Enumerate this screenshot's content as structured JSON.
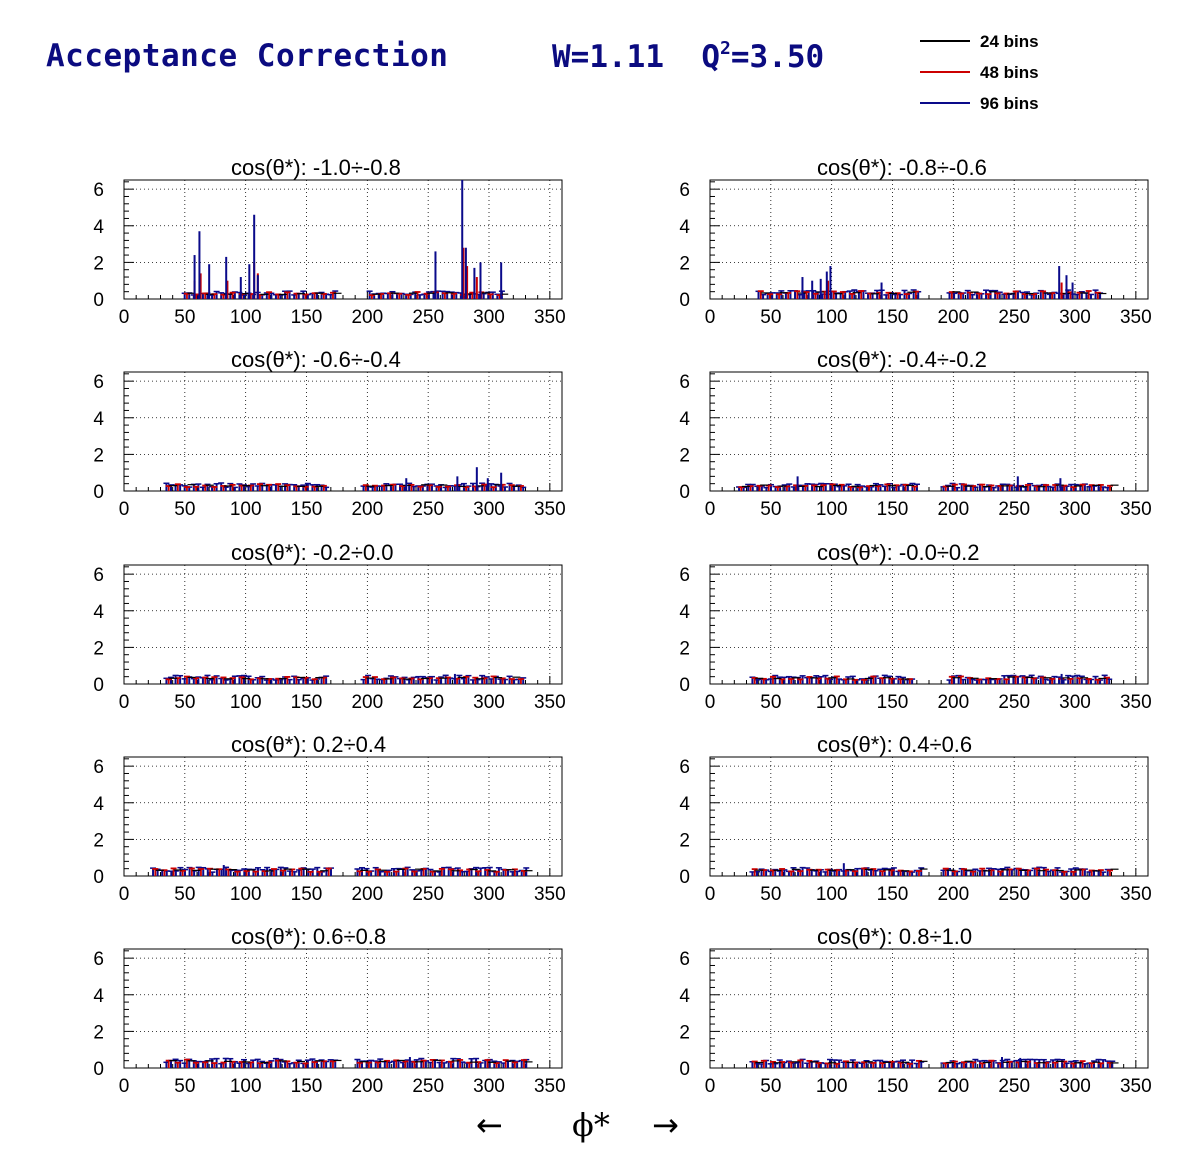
{
  "header": {
    "title": "Acceptance Correction",
    "w_label": "W=1.11",
    "q_prefix": "Q",
    "q_sup": "2",
    "q_value": "=3.50"
  },
  "legend": [
    {
      "label": "24 bins",
      "color": "#000000"
    },
    {
      "label": "48 bins",
      "color": "#cc0000"
    },
    {
      "label": "96 bins",
      "color": "#0a0a8a"
    }
  ],
  "axis": {
    "x_title": "ϕ*",
    "left_arrow": "←",
    "right_arrow": "→"
  },
  "chart_data": [
    {
      "type": "bar",
      "title": "cos(θ*): -1.0÷-0.8",
      "xlim": [
        0,
        360
      ],
      "ylim": [
        0,
        6.5
      ],
      "xticks": [
        0,
        50,
        100,
        150,
        200,
        250,
        300,
        350
      ],
      "yticks": [
        0,
        2,
        4,
        6
      ],
      "grid": true,
      "ranges": [
        [
          48,
          172
        ],
        [
          200,
          312
        ]
      ],
      "spikes": [
        [
          58,
          2.4
        ],
        [
          62,
          3.7
        ],
        [
          70,
          1.9
        ],
        [
          84,
          2.3
        ],
        [
          96,
          1.2
        ],
        [
          103,
          1.9
        ],
        [
          107,
          4.6
        ],
        [
          110,
          1.3
        ],
        [
          256,
          2.6
        ],
        [
          278,
          6.5
        ],
        [
          281,
          2.8
        ],
        [
          288,
          1.7
        ],
        [
          293,
          2.0
        ],
        [
          310,
          2.0
        ]
      ],
      "spikes_red": [
        [
          58,
          1.0
        ],
        [
          63,
          1.4
        ],
        [
          85,
          1.0
        ],
        [
          107,
          2.0
        ],
        [
          110,
          1.4
        ],
        [
          279,
          2.8
        ],
        [
          282,
          1.8
        ],
        [
          290,
          1.2
        ]
      ],
      "baseline": 0.35
    },
    {
      "type": "bar",
      "title": "cos(θ*): -0.8÷-0.6",
      "xlim": [
        0,
        360
      ],
      "ylim": [
        0,
        6.5
      ],
      "xticks": [
        0,
        50,
        100,
        150,
        200,
        250,
        300,
        350
      ],
      "yticks": [
        0,
        2,
        4,
        6
      ],
      "grid": true,
      "ranges": [
        [
          38,
          172
        ],
        [
          195,
          322
        ]
      ],
      "spikes": [
        [
          76,
          1.2
        ],
        [
          84,
          1.0
        ],
        [
          91,
          1.1
        ],
        [
          96,
          1.5
        ],
        [
          99,
          1.8
        ],
        [
          141,
          0.9
        ],
        [
          287,
          1.8
        ],
        [
          293,
          1.3
        ],
        [
          298,
          0.9
        ]
      ],
      "spikes_red": [
        [
          97,
          1.0
        ],
        [
          289,
          0.9
        ]
      ],
      "baseline": 0.4
    },
    {
      "type": "bar",
      "title": "cos(θ*): -0.6÷-0.4",
      "xlim": [
        0,
        360
      ],
      "ylim": [
        0,
        6.5
      ],
      "xticks": [
        0,
        50,
        100,
        150,
        200,
        250,
        300,
        350
      ],
      "yticks": [
        0,
        2,
        4,
        6
      ],
      "grid": true,
      "ranges": [
        [
          33,
          165
        ],
        [
          195,
          330
        ]
      ],
      "spikes": [
        [
          232,
          0.7
        ],
        [
          274,
          0.8
        ],
        [
          290,
          1.3
        ],
        [
          299,
          0.7
        ],
        [
          310,
          1.0
        ]
      ],
      "spikes_red": [],
      "baseline": 0.35
    },
    {
      "type": "bar",
      "title": "cos(θ*): -0.4÷-0.2",
      "xlim": [
        0,
        360
      ],
      "ylim": [
        0,
        6.5
      ],
      "xticks": [
        0,
        50,
        100,
        150,
        200,
        250,
        300,
        350
      ],
      "yticks": [
        0,
        2,
        4,
        6
      ],
      "grid": true,
      "ranges": [
        [
          22,
          172
        ],
        [
          190,
          328
        ]
      ],
      "spikes": [
        [
          72,
          0.8
        ],
        [
          253,
          0.8
        ],
        [
          288,
          0.7
        ]
      ],
      "spikes_red": [],
      "baseline": 0.33
    },
    {
      "type": "bar",
      "title": "cos(θ*): -0.2÷0.0",
      "xlim": [
        0,
        360
      ],
      "ylim": [
        0,
        6.5
      ],
      "xticks": [
        0,
        50,
        100,
        150,
        200,
        250,
        300,
        350
      ],
      "yticks": [
        0,
        2,
        4,
        6
      ],
      "grid": true,
      "ranges": [
        [
          33,
          165
        ],
        [
          195,
          328
        ]
      ],
      "spikes": [
        [
          272,
          0.55
        ]
      ],
      "spikes_red": [],
      "baseline": 0.38
    },
    {
      "type": "bar",
      "title": "cos(θ*): -0.0÷0.2",
      "xlim": [
        0,
        360
      ],
      "ylim": [
        0,
        6.5
      ],
      "xticks": [
        0,
        50,
        100,
        150,
        200,
        250,
        300,
        350
      ],
      "yticks": [
        0,
        2,
        4,
        6
      ],
      "grid": true,
      "ranges": [
        [
          33,
          165
        ],
        [
          195,
          328
        ]
      ],
      "spikes": [
        [
          289,
          0.55
        ]
      ],
      "spikes_red": [],
      "baseline": 0.38
    },
    {
      "type": "bar",
      "title": "cos(θ*): 0.2÷0.4",
      "xlim": [
        0,
        360
      ],
      "ylim": [
        0,
        6.5
      ],
      "xticks": [
        0,
        50,
        100,
        150,
        200,
        250,
        300,
        350
      ],
      "yticks": [
        0,
        2,
        4,
        6
      ],
      "grid": true,
      "ranges": [
        [
          22,
          172
        ],
        [
          190,
          330
        ]
      ],
      "spikes": [
        [
          82,
          0.6
        ]
      ],
      "spikes_red": [],
      "baseline": 0.38
    },
    {
      "type": "bar",
      "title": "cos(θ*): 0.4÷0.6",
      "xlim": [
        0,
        360
      ],
      "ylim": [
        0,
        6.5
      ],
      "xticks": [
        0,
        50,
        100,
        150,
        200,
        250,
        300,
        350
      ],
      "yticks": [
        0,
        2,
        4,
        6
      ],
      "grid": true,
      "ranges": [
        [
          33,
          172
        ],
        [
          190,
          328
        ]
      ],
      "spikes": [
        [
          110,
          0.7
        ]
      ],
      "spikes_red": [],
      "baseline": 0.38
    },
    {
      "type": "bar",
      "title": "cos(θ*): 0.6÷0.8",
      "xlim": [
        0,
        360
      ],
      "ylim": [
        0,
        6.5
      ],
      "xticks": [
        0,
        50,
        100,
        150,
        200,
        250,
        300,
        350
      ],
      "yticks": [
        0,
        2,
        4,
        6
      ],
      "grid": true,
      "ranges": [
        [
          33,
          172
        ],
        [
          190,
          330
        ]
      ],
      "spikes": [
        [
          235,
          0.6
        ]
      ],
      "spikes_red": [],
      "baseline": 0.42
    },
    {
      "type": "bar",
      "title": "cos(θ*): 0.8÷1.0",
      "xlim": [
        0,
        360
      ],
      "ylim": [
        0,
        6.5
      ],
      "xticks": [
        0,
        50,
        100,
        150,
        200,
        250,
        300,
        350
      ],
      "yticks": [
        0,
        2,
        4,
        6
      ],
      "grid": true,
      "ranges": [
        [
          33,
          172
        ],
        [
          190,
          330
        ]
      ],
      "spikes": [
        [
          240,
          0.6
        ],
        [
          255,
          0.55
        ]
      ],
      "spikes_red": [],
      "baseline": 0.38
    }
  ]
}
